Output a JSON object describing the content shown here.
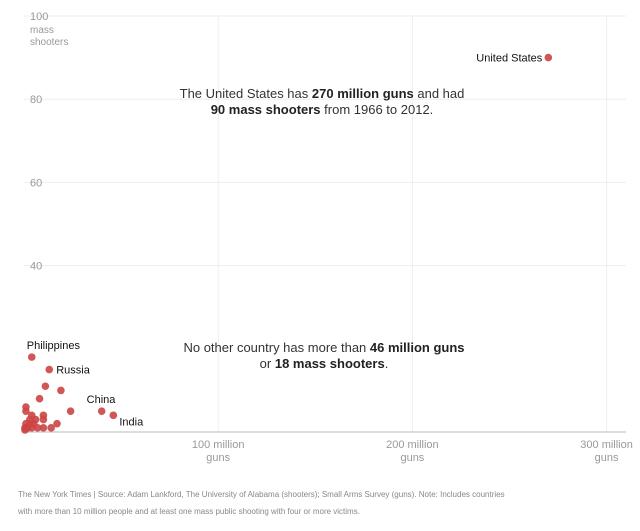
{
  "chart_data": {
    "type": "scatter",
    "y_axis_label": [
      "mass",
      "shooters"
    ],
    "y_ticks": [
      {
        "value": 100,
        "label": "100"
      },
      {
        "value": 80,
        "label": "80"
      },
      {
        "value": 60,
        "label": "60"
      },
      {
        "value": 40,
        "label": "40"
      }
    ],
    "x_ticks": [
      {
        "value": 100,
        "label": [
          "100 million",
          "guns"
        ]
      },
      {
        "value": 200,
        "label": [
          "200 million",
          "guns"
        ]
      },
      {
        "value": 300,
        "label": [
          "300 million",
          "guns"
        ]
      }
    ],
    "xlim": [
      0,
      310
    ],
    "ylim": [
      0,
      100
    ],
    "grid": true,
    "point_color": "#cc4444",
    "points": [
      {
        "label": "United States",
        "x": 270,
        "y": 90
      },
      {
        "label": "Philippines",
        "x": 4,
        "y": 18
      },
      {
        "label": "Russia",
        "x": 13,
        "y": 15
      },
      {
        "label": "China",
        "x": 40,
        "y": 5
      },
      {
        "label": "India",
        "x": 46,
        "y": 4
      },
      {
        "label": "",
        "x": 11,
        "y": 11
      },
      {
        "label": "",
        "x": 19,
        "y": 10
      },
      {
        "label": "",
        "x": 8,
        "y": 8
      },
      {
        "label": "",
        "x": 24,
        "y": 5
      },
      {
        "label": "",
        "x": 1,
        "y": 6
      },
      {
        "label": "",
        "x": 1,
        "y": 5
      },
      {
        "label": "",
        "x": 4,
        "y": 4
      },
      {
        "label": "",
        "x": 10,
        "y": 4
      },
      {
        "label": "",
        "x": 3,
        "y": 3
      },
      {
        "label": "",
        "x": 6,
        "y": 3
      },
      {
        "label": "",
        "x": 10,
        "y": 3
      },
      {
        "label": "",
        "x": 1,
        "y": 2
      },
      {
        "label": "",
        "x": 3,
        "y": 2
      },
      {
        "label": "",
        "x": 5,
        "y": 2
      },
      {
        "label": "",
        "x": 17,
        "y": 2
      },
      {
        "label": "",
        "x": 1,
        "y": 1
      },
      {
        "label": "",
        "x": 2,
        "y": 1
      },
      {
        "label": "",
        "x": 4,
        "y": 1
      },
      {
        "label": "",
        "x": 7,
        "y": 1
      },
      {
        "label": "",
        "x": 10,
        "y": 1
      },
      {
        "label": "",
        "x": 14,
        "y": 1
      },
      {
        "label": "",
        "x": 0.5,
        "y": 1
      },
      {
        "label": "",
        "x": 0.5,
        "y": 0.5
      }
    ]
  },
  "annotations": {
    "top": {
      "t1": "The United States has ",
      "b1": "270 million guns",
      "t2": " and had",
      "b2": "90 mass shooters",
      "t3": " from 1966 to 2012."
    },
    "bottom": {
      "t1": "No other country has more than ",
      "b1": "46 million guns",
      "t2": "or ",
      "b2": "18 mass shooters",
      "t3": "."
    }
  },
  "source": {
    "line1": "The New York Times  |  Source: Adam Lankford, The University of Alabama (shooters); Small Arms Survey (guns). Note: Includes countries",
    "line2": "with more than 10 million people and at least one mass public shooting with four or more victims."
  }
}
